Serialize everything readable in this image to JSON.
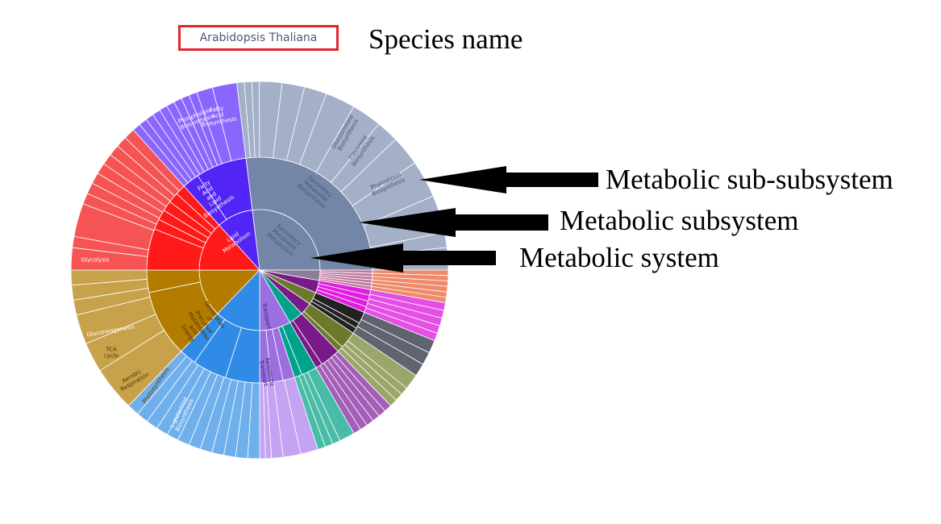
{
  "species_name": "Arabidopsis Thaliana",
  "annotations": {
    "species": "Species name",
    "sub_subsystem": "Metabolic sub-subsystem",
    "subsystem": "Metabolic subsystem",
    "system": "Metabolic system"
  },
  "colors": {
    "species_box_border": "#e0262e",
    "lipid": "#5224f5",
    "secondary": "#7486a8",
    "carbohydrate": "#ff1a1a",
    "energy": "#b37c00",
    "amino": "#2f8be6",
    "transport": "#9b6fe0",
    "teal": "#00a38a",
    "purple": "#7a1a8a",
    "olive": "#6b7a2a",
    "black": "#222222",
    "gray": "#555555"
  },
  "sunburst": {
    "center_labels": [
      {
        "id": "lipid-metabolism",
        "text": [
          "Lipid",
          "Metabolism"
        ],
        "color": "#ffffff"
      },
      {
        "id": "secondary-metabolism",
        "text": [
          "Secondary",
          "Metabolite",
          "Metabolism"
        ],
        "color": "#48546b"
      },
      {
        "id": "generation-precursor",
        "text": [
          "Generation",
          "of",
          "Precursor",
          "Metabolites",
          "and",
          "Energy"
        ],
        "color": "#4a3300"
      },
      {
        "id": "transport",
        "text": [
          "Transport"
        ],
        "color": "#3a2070"
      }
    ],
    "subsystem_labels": [
      {
        "id": "fatty-acid-lipid-biosynthesis",
        "text": [
          "Fatty",
          "Acid",
          "and",
          "Lipid",
          "Biosynthesis"
        ],
        "color": "#ffffff"
      },
      {
        "id": "secondary-metabolite-biosynthesis",
        "text": [
          "Secondary",
          "Metabolite",
          "Biosynthesis"
        ],
        "color": "#48546b"
      },
      {
        "id": "xenobiotic-transport",
        "text": [
          "Xenobiotic",
          "Transport"
        ],
        "color": "#3a2070"
      }
    ],
    "outer_labels": [
      {
        "id": "fatty-acid-biosynthesis",
        "text": [
          "Fatty",
          "Acid",
          "Biosynthesis"
        ],
        "color": "#ffffff"
      },
      {
        "id": "phospholipid-biosynthesis",
        "text": [
          "Phospholipid",
          "Biosynthesis"
        ],
        "color": "#ffffff"
      },
      {
        "id": "glucosinolate-biosynthesis",
        "text": [
          "Glucosinolate",
          "Biosynthesis"
        ],
        "color": "#48546b"
      },
      {
        "id": "flavonoid-biosynthesis",
        "text": [
          "Flavonoid",
          "Biosynthesis"
        ],
        "color": "#48546b"
      },
      {
        "id": "phytoalexin-biosynthesis",
        "text": [
          "Phytoalexin",
          "Biosynthesis"
        ],
        "color": "#48546b"
      },
      {
        "id": "glycolysis",
        "text": [
          "Glycolysis"
        ],
        "color": "#ffffff"
      },
      {
        "id": "gluconeogenesis",
        "text": [
          "Gluconeogenesis"
        ],
        "color": "#ffffff"
      },
      {
        "id": "tca-cycle",
        "text": [
          "TCA",
          "cycle"
        ],
        "color": "#4a3300"
      },
      {
        "id": "aerobic-respiration",
        "text": [
          "Aerobic",
          "Respiration"
        ],
        "color": "#4a3300"
      },
      {
        "id": "photosynthesis",
        "text": [
          "Photosynthesis"
        ],
        "color": "#4a3300"
      },
      {
        "id": "l-glutamine-biosynthesis",
        "text": [
          "L-glutamine",
          "Biosynthesis"
        ],
        "color": "#ffffff"
      }
    ]
  }
}
